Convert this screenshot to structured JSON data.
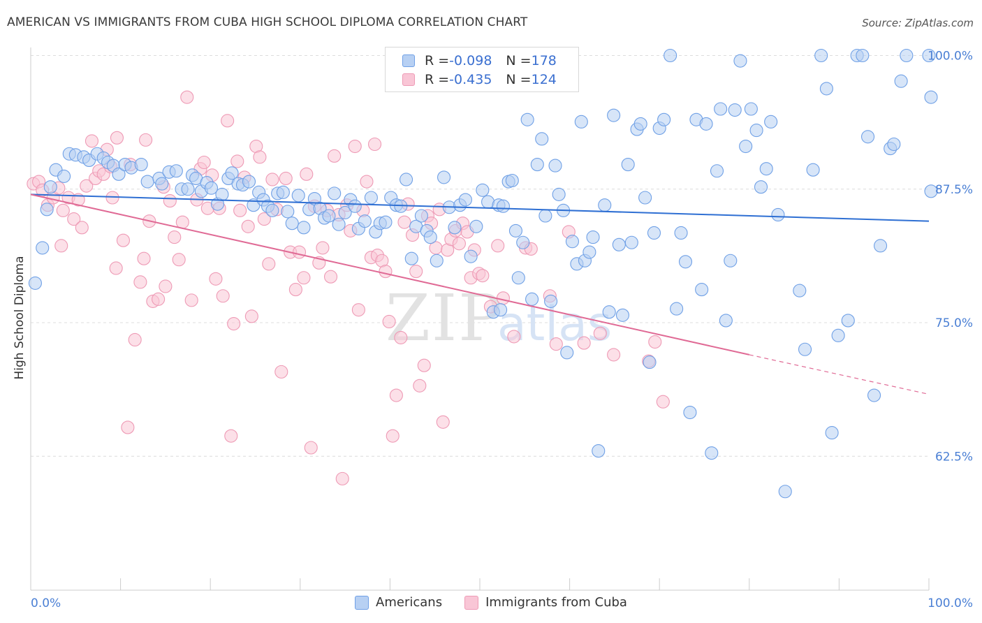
{
  "title": "AMERICAN VS IMMIGRANTS FROM CUBA HIGH SCHOOL DIPLOMA CORRELATION CHART",
  "source": "Source: ZipAtlas.com",
  "watermark": {
    "zip": "ZIP",
    "atlas": "atlas"
  },
  "legend_top": [
    {
      "r_label": "R = ",
      "r_value": "-0.098",
      "n_label": "N = ",
      "n_value": "178",
      "color": "#a8c6f0"
    },
    {
      "r_label": "R = ",
      "r_value": "-0.435",
      "n_label": "N = ",
      "n_value": "124",
      "color": "#f5b4c8"
    }
  ],
  "legend_bottom": [
    {
      "label": "Americans",
      "color": "#a8c6f0"
    },
    {
      "label": "Immigrants from Cuba",
      "color": "#f5b4c8"
    }
  ],
  "chart_data": {
    "type": "scatter",
    "ylabel": "High School Diploma",
    "xlim": [
      0,
      100
    ],
    "ylim": [
      50,
      100
    ],
    "x_tick_labels": [
      "0.0%",
      "100.0%"
    ],
    "y_ticks": [
      {
        "value": 100,
        "label": "100.0%"
      },
      {
        "value": 87.5,
        "label": "87.5%"
      },
      {
        "value": 75,
        "label": "75.0%"
      },
      {
        "value": 62.5,
        "label": "62.5%"
      }
    ],
    "grid": true,
    "series": [
      {
        "name": "Americans",
        "color": "#6fa0e6",
        "fill": "#b7d0f3",
        "trend": {
          "x0": 0,
          "y0": 87.0,
          "x1": 100,
          "y1": 84.5,
          "style": "solid"
        },
        "points": [
          [
            0.5,
            78.7
          ],
          [
            1.3,
            82.0
          ],
          [
            1.8,
            85.6
          ],
          [
            2.2,
            87.7
          ],
          [
            2.8,
            89.3
          ],
          [
            3.7,
            88.7
          ],
          [
            4.3,
            90.8
          ],
          [
            5.0,
            90.7
          ],
          [
            5.9,
            90.5
          ],
          [
            6.5,
            90.2
          ],
          [
            7.4,
            90.8
          ],
          [
            8.1,
            90.4
          ],
          [
            8.6,
            90.0
          ],
          [
            9.2,
            89.7
          ],
          [
            9.8,
            88.9
          ],
          [
            10.5,
            89.8
          ],
          [
            11.2,
            89.5
          ],
          [
            12.3,
            89.8
          ],
          [
            13.0,
            88.2
          ],
          [
            14.3,
            88.5
          ],
          [
            14.6,
            88.0
          ],
          [
            15.4,
            89.1
          ],
          [
            16.2,
            89.2
          ],
          [
            16.8,
            87.5
          ],
          [
            17.5,
            87.5
          ],
          [
            18.0,
            88.8
          ],
          [
            18.4,
            88.5
          ],
          [
            19.0,
            87.3
          ],
          [
            19.6,
            88.1
          ],
          [
            20.1,
            87.6
          ],
          [
            20.8,
            86.1
          ],
          [
            21.3,
            87.0
          ],
          [
            22.0,
            88.5
          ],
          [
            22.4,
            89.0
          ],
          [
            23.1,
            88.0
          ],
          [
            23.6,
            87.9
          ],
          [
            24.3,
            88.2
          ],
          [
            24.8,
            86.0
          ],
          [
            25.4,
            87.2
          ],
          [
            25.9,
            86.5
          ],
          [
            26.4,
            85.9
          ],
          [
            26.9,
            85.5
          ],
          [
            27.5,
            87.1
          ],
          [
            28.1,
            87.2
          ],
          [
            28.6,
            85.4
          ],
          [
            29.1,
            84.3
          ],
          [
            29.8,
            86.9
          ],
          [
            30.4,
            83.9
          ],
          [
            31.0,
            85.6
          ],
          [
            31.6,
            86.6
          ],
          [
            32.2,
            85.7
          ],
          [
            32.7,
            84.8
          ],
          [
            33.2,
            85.0
          ],
          [
            33.8,
            87.1
          ],
          [
            34.3,
            84.2
          ],
          [
            35.0,
            85.3
          ],
          [
            35.6,
            86.5
          ],
          [
            36.1,
            85.9
          ],
          [
            36.5,
            83.8
          ],
          [
            37.2,
            84.5
          ],
          [
            37.9,
            86.7
          ],
          [
            38.4,
            83.5
          ],
          [
            38.9,
            84.3
          ],
          [
            39.5,
            84.4
          ],
          [
            40.1,
            86.7
          ],
          [
            40.7,
            86.0
          ],
          [
            41.2,
            85.9
          ],
          [
            41.8,
            88.4
          ],
          [
            42.4,
            81.0
          ],
          [
            42.9,
            84.0
          ],
          [
            43.5,
            85.0
          ],
          [
            44.1,
            83.6
          ],
          [
            44.5,
            83.0
          ],
          [
            45.2,
            80.8
          ],
          [
            46.0,
            88.6
          ],
          [
            46.6,
            85.8
          ],
          [
            47.2,
            83.9
          ],
          [
            47.8,
            86.0
          ],
          [
            48.4,
            86.5
          ],
          [
            49.0,
            81.2
          ],
          [
            49.6,
            84.0
          ],
          [
            50.3,
            87.4
          ],
          [
            50.9,
            86.3
          ],
          [
            51.5,
            76.0
          ],
          [
            52.1,
            86.0
          ],
          [
            52.3,
            76.2
          ],
          [
            52.6,
            85.9
          ],
          [
            53.2,
            88.2
          ],
          [
            53.6,
            88.3
          ],
          [
            54.0,
            83.6
          ],
          [
            54.3,
            79.2
          ],
          [
            54.8,
            82.5
          ],
          [
            55.3,
            94.0
          ],
          [
            55.8,
            77.2
          ],
          [
            56.4,
            89.8
          ],
          [
            56.9,
            92.2
          ],
          [
            57.3,
            85.0
          ],
          [
            57.9,
            77.0
          ],
          [
            58.4,
            89.7
          ],
          [
            58.8,
            87.0
          ],
          [
            59.3,
            85.5
          ],
          [
            59.7,
            72.2
          ],
          [
            60.3,
            82.6
          ],
          [
            60.8,
            80.5
          ],
          [
            61.3,
            93.8
          ],
          [
            61.7,
            80.8
          ],
          [
            62.2,
            81.6
          ],
          [
            62.6,
            83.0
          ],
          [
            63.2,
            63.0
          ],
          [
            63.9,
            86.0
          ],
          [
            64.4,
            76.0
          ],
          [
            64.9,
            94.4
          ],
          [
            65.5,
            82.3
          ],
          [
            65.9,
            75.7
          ],
          [
            66.5,
            89.8
          ],
          [
            66.9,
            82.5
          ],
          [
            67.5,
            93.1
          ],
          [
            67.9,
            93.6
          ],
          [
            68.4,
            86.7
          ],
          [
            68.9,
            71.3
          ],
          [
            69.4,
            83.4
          ],
          [
            70.0,
            93.2
          ],
          [
            70.5,
            94.0
          ],
          [
            71.2,
            100.0
          ],
          [
            71.9,
            76.3
          ],
          [
            72.4,
            83.4
          ],
          [
            72.9,
            80.7
          ],
          [
            73.4,
            66.6
          ],
          [
            74.1,
            94.0
          ],
          [
            74.7,
            78.1
          ],
          [
            75.2,
            93.6
          ],
          [
            75.8,
            62.8
          ],
          [
            76.4,
            89.2
          ],
          [
            76.8,
            95.0
          ],
          [
            77.4,
            75.2
          ],
          [
            77.9,
            80.8
          ],
          [
            78.4,
            94.9
          ],
          [
            79.0,
            99.5
          ],
          [
            79.6,
            91.5
          ],
          [
            80.2,
            95.0
          ],
          [
            80.8,
            93.0
          ],
          [
            81.3,
            87.7
          ],
          [
            81.9,
            89.4
          ],
          [
            82.4,
            93.8
          ],
          [
            83.2,
            85.1
          ],
          [
            84.0,
            59.2
          ],
          [
            85.6,
            78.0
          ],
          [
            86.2,
            72.5
          ],
          [
            87.1,
            89.3
          ],
          [
            88.0,
            100.0
          ],
          [
            88.6,
            96.9
          ],
          [
            89.2,
            64.7
          ],
          [
            89.9,
            73.8
          ],
          [
            91.0,
            75.2
          ],
          [
            92.0,
            100.0
          ],
          [
            92.6,
            100.0
          ],
          [
            93.2,
            92.4
          ],
          [
            93.9,
            68.2
          ],
          [
            94.6,
            82.2
          ],
          [
            95.7,
            91.3
          ],
          [
            96.1,
            91.7
          ],
          [
            96.9,
            97.6
          ],
          [
            97.5,
            100.0
          ],
          [
            100.0,
            100.0
          ],
          [
            101.0,
            96.1
          ],
          [
            101.3,
            87.3
          ]
        ]
      },
      {
        "name": "Immigrants from Cuba",
        "color": "#ee9ab5",
        "fill": "#f9c6d6",
        "trend": {
          "x0": 0,
          "y0": 87.0,
          "x1": 80,
          "y1": 72.0,
          "dash_x1": 100,
          "dash_y1": 68.3,
          "style": "solid-then-dashed"
        },
        "points": [
          [
            0.3,
            88.0
          ],
          [
            0.9,
            88.2
          ],
          [
            1.3,
            87.4
          ],
          [
            1.9,
            86.0
          ],
          [
            2.5,
            86.7
          ],
          [
            3.1,
            87.6
          ],
          [
            3.6,
            85.5
          ],
          [
            3.4,
            82.2
          ],
          [
            4.2,
            86.7
          ],
          [
            4.8,
            84.7
          ],
          [
            5.3,
            86.5
          ],
          [
            5.7,
            83.9
          ],
          [
            6.2,
            87.8
          ],
          [
            6.8,
            92.0
          ],
          [
            7.2,
            88.5
          ],
          [
            7.6,
            89.2
          ],
          [
            8.1,
            88.9
          ],
          [
            8.5,
            91.2
          ],
          [
            8.9,
            89.6
          ],
          [
            9.6,
            92.3
          ],
          [
            9.1,
            86.7
          ],
          [
            9.5,
            80.1
          ],
          [
            10.3,
            82.7
          ],
          [
            10.8,
            65.2
          ],
          [
            11.1,
            89.8
          ],
          [
            11.6,
            73.4
          ],
          [
            12.2,
            78.8
          ],
          [
            12.8,
            92.1
          ],
          [
            12.6,
            81.0
          ],
          [
            13.2,
            84.5
          ],
          [
            13.6,
            77.0
          ],
          [
            14.2,
            77.2
          ],
          [
            14.8,
            87.7
          ],
          [
            15.0,
            78.4
          ],
          [
            15.5,
            86.4
          ],
          [
            16.0,
            83.0
          ],
          [
            16.5,
            80.9
          ],
          [
            16.9,
            84.4
          ],
          [
            17.4,
            96.1
          ],
          [
            17.9,
            77.1
          ],
          [
            18.5,
            86.5
          ],
          [
            18.9,
            89.4
          ],
          [
            19.3,
            90.0
          ],
          [
            19.7,
            85.7
          ],
          [
            20.2,
            88.8
          ],
          [
            20.6,
            79.1
          ],
          [
            21.0,
            85.7
          ],
          [
            21.4,
            77.5
          ],
          [
            21.9,
            93.9
          ],
          [
            22.3,
            64.4
          ],
          [
            22.6,
            74.9
          ],
          [
            23.0,
            90.1
          ],
          [
            23.3,
            85.5
          ],
          [
            23.8,
            88.6
          ],
          [
            24.2,
            84.0
          ],
          [
            24.6,
            75.6
          ],
          [
            25.1,
            91.5
          ],
          [
            25.5,
            90.5
          ],
          [
            26.0,
            84.7
          ],
          [
            26.5,
            80.5
          ],
          [
            26.9,
            88.4
          ],
          [
            27.4,
            85.6
          ],
          [
            27.9,
            70.4
          ],
          [
            28.4,
            88.5
          ],
          [
            28.9,
            81.6
          ],
          [
            29.5,
            78.1
          ],
          [
            29.9,
            81.6
          ],
          [
            30.4,
            79.2
          ],
          [
            30.7,
            88.9
          ],
          [
            31.2,
            63.3
          ],
          [
            31.6,
            85.9
          ],
          [
            32.1,
            80.6
          ],
          [
            32.5,
            82.0
          ],
          [
            33.0,
            85.5
          ],
          [
            33.4,
            79.3
          ],
          [
            33.8,
            90.6
          ],
          [
            34.3,
            85.1
          ],
          [
            34.7,
            60.4
          ],
          [
            35.2,
            86.0
          ],
          [
            35.6,
            83.6
          ],
          [
            36.1,
            91.5
          ],
          [
            36.5,
            76.2
          ],
          [
            37.0,
            85.5
          ],
          [
            37.4,
            88.2
          ],
          [
            37.9,
            81.1
          ],
          [
            38.3,
            91.7
          ],
          [
            38.6,
            81.3
          ],
          [
            39.1,
            80.8
          ],
          [
            39.5,
            79.8
          ],
          [
            39.9,
            75.1
          ],
          [
            40.3,
            64.4
          ],
          [
            40.7,
            68.2
          ],
          [
            41.2,
            73.6
          ],
          [
            41.6,
            84.4
          ],
          [
            42.0,
            86.1
          ],
          [
            42.5,
            83.2
          ],
          [
            42.9,
            79.8
          ],
          [
            43.3,
            69.1
          ],
          [
            43.8,
            71.0
          ],
          [
            44.2,
            85.0
          ],
          [
            44.6,
            84.3
          ],
          [
            45.1,
            82.0
          ],
          [
            45.5,
            85.6
          ],
          [
            45.9,
            65.7
          ],
          [
            46.4,
            81.8
          ],
          [
            46.8,
            82.8
          ],
          [
            47.3,
            83.6
          ],
          [
            47.7,
            82.4
          ],
          [
            48.1,
            84.3
          ],
          [
            48.6,
            83.5
          ],
          [
            49.0,
            79.2
          ],
          [
            49.4,
            81.8
          ],
          [
            49.9,
            79.6
          ],
          [
            50.3,
            79.4
          ],
          [
            51.2,
            76.5
          ],
          [
            52.0,
            82.2
          ],
          [
            52.6,
            77.3
          ],
          [
            53.8,
            73.7
          ],
          [
            55.1,
            82.0
          ],
          [
            55.7,
            81.9
          ],
          [
            57.8,
            77.5
          ],
          [
            58.5,
            73.0
          ],
          [
            59.9,
            83.5
          ],
          [
            61.6,
            73.1
          ],
          [
            63.4,
            74.0
          ],
          [
            64.9,
            72.0
          ],
          [
            68.8,
            71.4
          ],
          [
            69.5,
            73.2
          ],
          [
            70.4,
            67.6
          ]
        ]
      }
    ]
  }
}
